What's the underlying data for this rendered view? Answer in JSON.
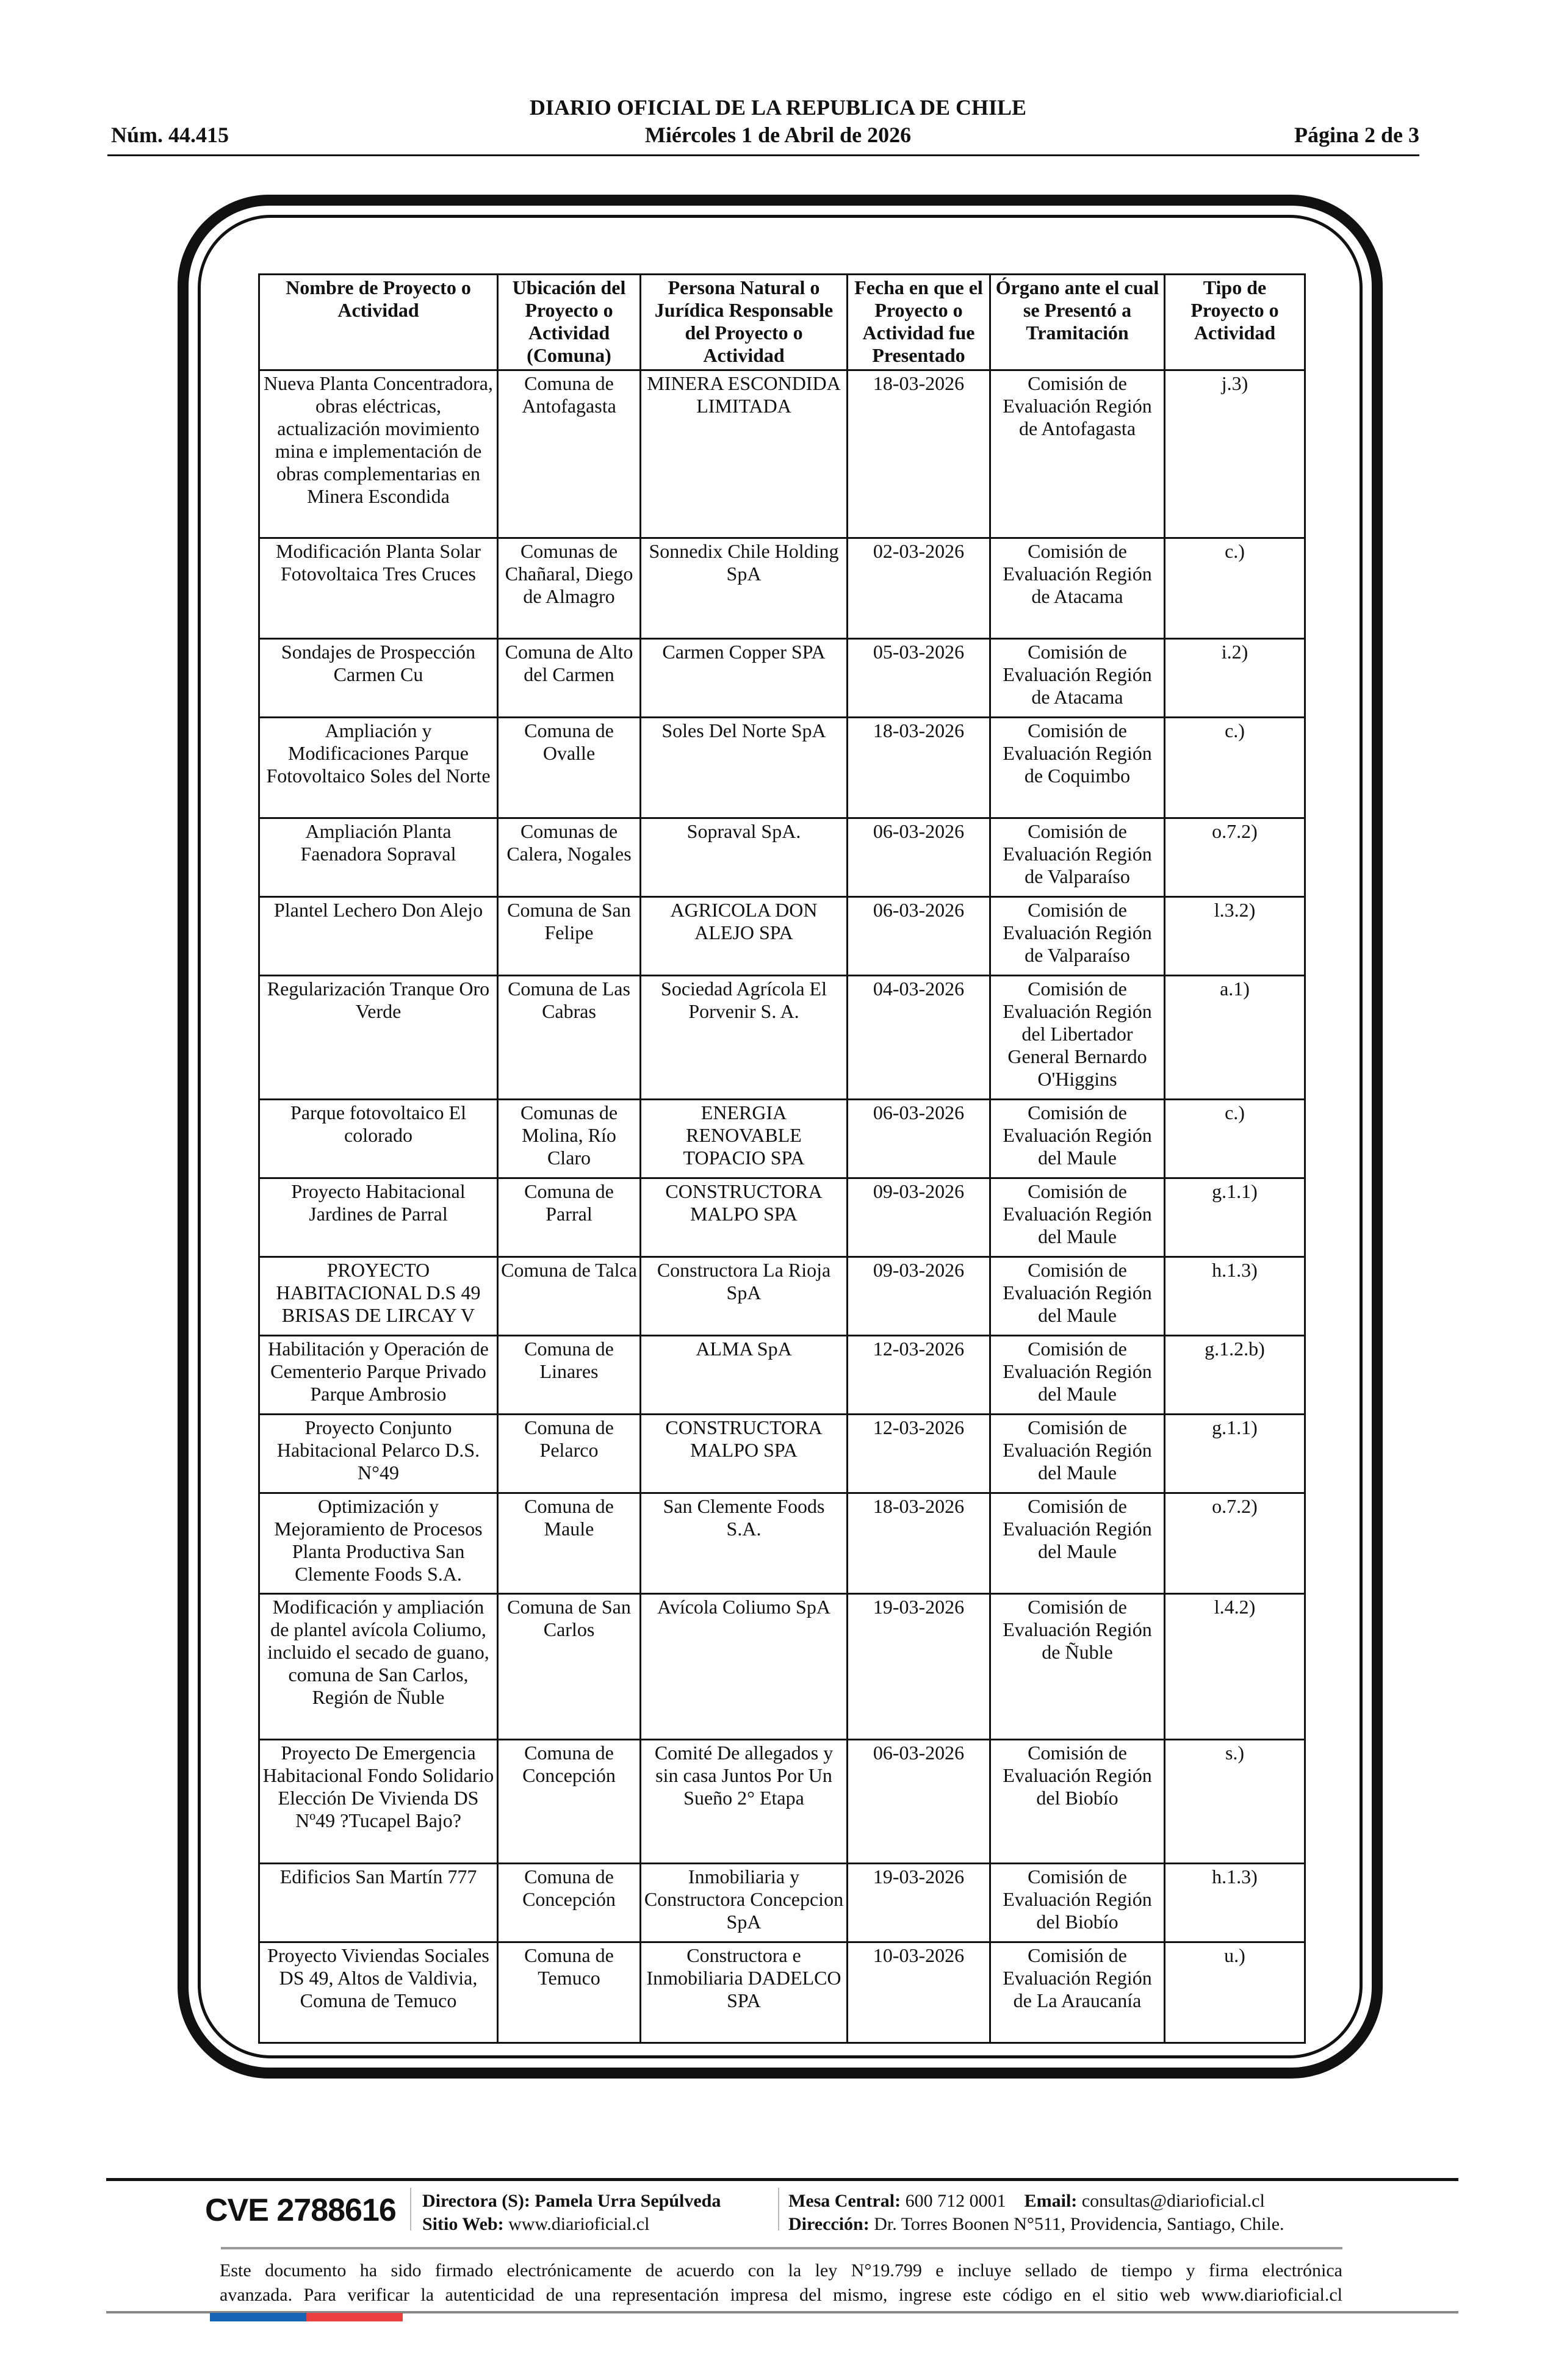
{
  "header": {
    "title": "DIARIO OFICIAL DE LA REPUBLICA DE CHILE",
    "number": "Núm. 44.415",
    "date": "Miércoles 1 de Abril de 2026",
    "page": "Página 2 de 3"
  },
  "table": {
    "columns": [
      "Nombre de Proyecto o Actividad",
      "Ubicación del Proyecto o Actividad (Comuna)",
      "Persona Natural o Jurídica Responsable del Proyecto o Actividad",
      "Fecha en que el Proyecto o Actividad fue Presentado",
      "Órgano ante el cual se Presentó a Tramitación",
      "Tipo de Proyecto o Actividad"
    ],
    "rows": [
      [
        "Nueva Planta Concentradora, obras eléctricas, actualización movimiento mina e implementación de obras complementarias en Minera Escondida",
        "Comuna de Antofagasta",
        "MINERA ESCONDIDA LIMITADA",
        "18-03-2026",
        "Comisión de Evaluación Región de Antofagasta",
        "j.3)"
      ],
      [
        "Modificación Planta Solar Fotovoltaica Tres Cruces",
        "Comunas de Chañaral, Diego de Almagro",
        "Sonnedix Chile Holding SpA",
        "02-03-2026",
        "Comisión de Evaluación Región de Atacama",
        "c.)"
      ],
      [
        "Sondajes de Prospección Carmen Cu",
        "Comuna de Alto del Carmen",
        "Carmen Copper SPA",
        "05-03-2026",
        "Comisión de Evaluación Región de Atacama",
        "i.2)"
      ],
      [
        "Ampliación y Modificaciones Parque Fotovoltaico Soles del Norte",
        "Comuna de Ovalle",
        "Soles Del Norte SpA",
        "18-03-2026",
        "Comisión de Evaluación Región de Coquimbo",
        "c.)"
      ],
      [
        "Ampliación Planta Faenadora Sopraval",
        "Comunas de Calera, Nogales",
        "Sopraval SpA.",
        "06-03-2026",
        "Comisión de Evaluación Región de Valparaíso",
        "o.7.2)"
      ],
      [
        "Plantel Lechero Don Alejo",
        "Comuna de San Felipe",
        "AGRICOLA DON ALEJO SPA",
        "06-03-2026",
        "Comisión de Evaluación Región de Valparaíso",
        "l.3.2)"
      ],
      [
        "Regularización Tranque Oro Verde",
        "Comuna de Las Cabras",
        "Sociedad Agrícola El Porvenir S. A.",
        "04-03-2026",
        "Comisión de Evaluación Región del Libertador General Bernardo O'Higgins",
        "a.1)"
      ],
      [
        "Parque fotovoltaico El colorado",
        "Comunas de Molina, Río Claro",
        "ENERGIA RENOVABLE TOPACIO SPA",
        "06-03-2026",
        "Comisión de Evaluación Región del Maule",
        "c.)"
      ],
      [
        "Proyecto Habitacional Jardines de Parral",
        "Comuna de Parral",
        "CONSTRUCTORA MALPO SPA",
        "09-03-2026",
        "Comisión de Evaluación Región del Maule",
        "g.1.1)"
      ],
      [
        "PROYECTO HABITACIONAL D.S 49 BRISAS DE LIRCAY V",
        "Comuna de Talca",
        "Constructora La Rioja SpA",
        "09-03-2026",
        "Comisión de Evaluación Región del Maule",
        "h.1.3)"
      ],
      [
        "Habilitación y Operación de Cementerio Parque Privado Parque Ambrosio",
        "Comuna de Linares",
        "ALMA SpA",
        "12-03-2026",
        "Comisión de Evaluación Región del Maule",
        "g.1.2.b)"
      ],
      [
        "Proyecto Conjunto Habitacional Pelarco D.S. N°49",
        "Comuna de Pelarco",
        "CONSTRUCTORA MALPO SPA",
        "12-03-2026",
        "Comisión de Evaluación Región del Maule",
        "g.1.1)"
      ],
      [
        "Optimización y Mejoramiento de Procesos Planta Productiva San Clemente Foods S.A.",
        "Comuna de Maule",
        "San Clemente Foods S.A.",
        "18-03-2026",
        "Comisión de Evaluación Región del Maule",
        "o.7.2)"
      ],
      [
        "Modificación y ampliación de plantel avícola Coliumo, incluido el secado de guano, comuna de San Carlos, Región de Ñuble",
        "Comuna de San Carlos",
        "Avícola Coliumo SpA",
        "19-03-2026",
        "Comisión de Evaluación Región de Ñuble",
        "l.4.2)"
      ],
      [
        "Proyecto De Emergencia Habitacional Fondo Solidario Elección De Vivienda DS Nº49 ?Tucapel Bajo?",
        "Comuna de Concepción",
        "Comité De allegados y sin casa Juntos Por Un Sueño 2° Etapa",
        "06-03-2026",
        "Comisión de Evaluación Región del Biobío",
        "s.)"
      ],
      [
        "Edificios San Martín 777",
        "Comuna de Concepción",
        "Inmobiliaria y Constructora Concepcion SpA",
        "19-03-2026",
        "Comisión de Evaluación Región del Biobío",
        "h.1.3)"
      ],
      [
        "Proyecto Viviendas Sociales DS 49, Altos de Valdivia, Comuna de Temuco",
        "Comuna de Temuco",
        "Constructora e Inmobiliaria DADELCO SPA",
        "10-03-2026",
        "Comisión de Evaluación Región de La Araucanía",
        "u.)"
      ]
    ]
  },
  "footer": {
    "cve": "CVE 2788616",
    "directora_label": "Directora (S):",
    "directora": "Pamela Urra Sepúlveda",
    "web_label": "Sitio Web:",
    "web": "www.diarioficial.cl",
    "mesa_label": "Mesa Central:",
    "mesa": "600 712 0001",
    "email_label": "Email:",
    "email": "consultas@diarioficial.cl",
    "direccion_label": "Dirección:",
    "direccion": "Dr. Torres Boonen N°511, Providencia, Santiago, Chile.",
    "note_line1": "Este documento ha sido firmado electrónicamente de acuerdo con la ley N°19.799 e incluye sellado de tiempo y firma electrónica",
    "note_line2": "avanzada. Para verificar la autenticidad de una representación impresa del mismo, ingrese este código en el sitio web www.diarioficial.cl"
  },
  "colors": {
    "flag_blue": "#1565b4",
    "flag_red": "#e8413f",
    "text": "#111111"
  }
}
